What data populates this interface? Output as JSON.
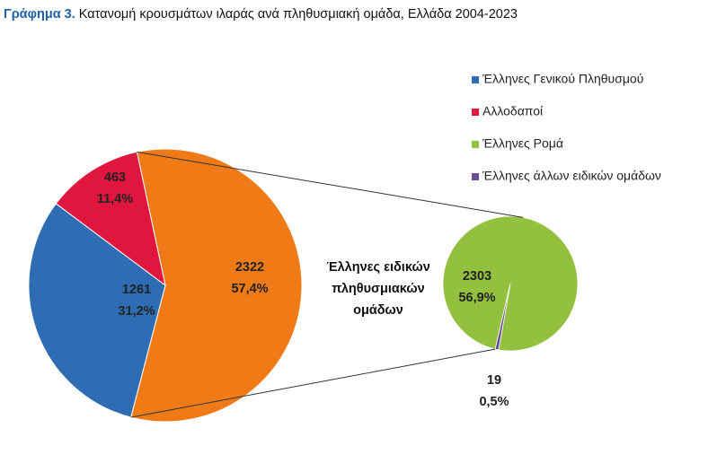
{
  "chart_data": {
    "type": "pie-of-pie",
    "title_prefix": "Γράφημα 3.",
    "title": "Κατανομή κρουσμάτων ιλαράς ανά πληθυσμιακή ομάδα, Ελλάδα 2004-2023",
    "categories": [
      "Έλληνες Γενικού Πληθυσμού",
      "Αλλοδαποί",
      "Έλληνες ειδικών πληθυσμιακών ομάδων"
    ],
    "values": [
      1261,
      463,
      2322
    ],
    "percent_values": [
      31.2,
      11.4,
      57.4
    ],
    "percent_labels": [
      "31,2%",
      "11,4%",
      "57,4%"
    ],
    "colors": [
      "#2e6db4",
      "#e0163f",
      "#f07b16"
    ],
    "sub_categories": [
      "Έλληνες Ρομά",
      "Έλληνες άλλων ειδικών ομάδων"
    ],
    "sub_values": [
      2303,
      19
    ],
    "sub_percent_values": [
      56.9,
      0.5
    ],
    "sub_percent_labels": [
      "56,9%",
      "0,5%"
    ],
    "sub_colors": [
      "#93c13f",
      "#6a4c93"
    ]
  }
}
